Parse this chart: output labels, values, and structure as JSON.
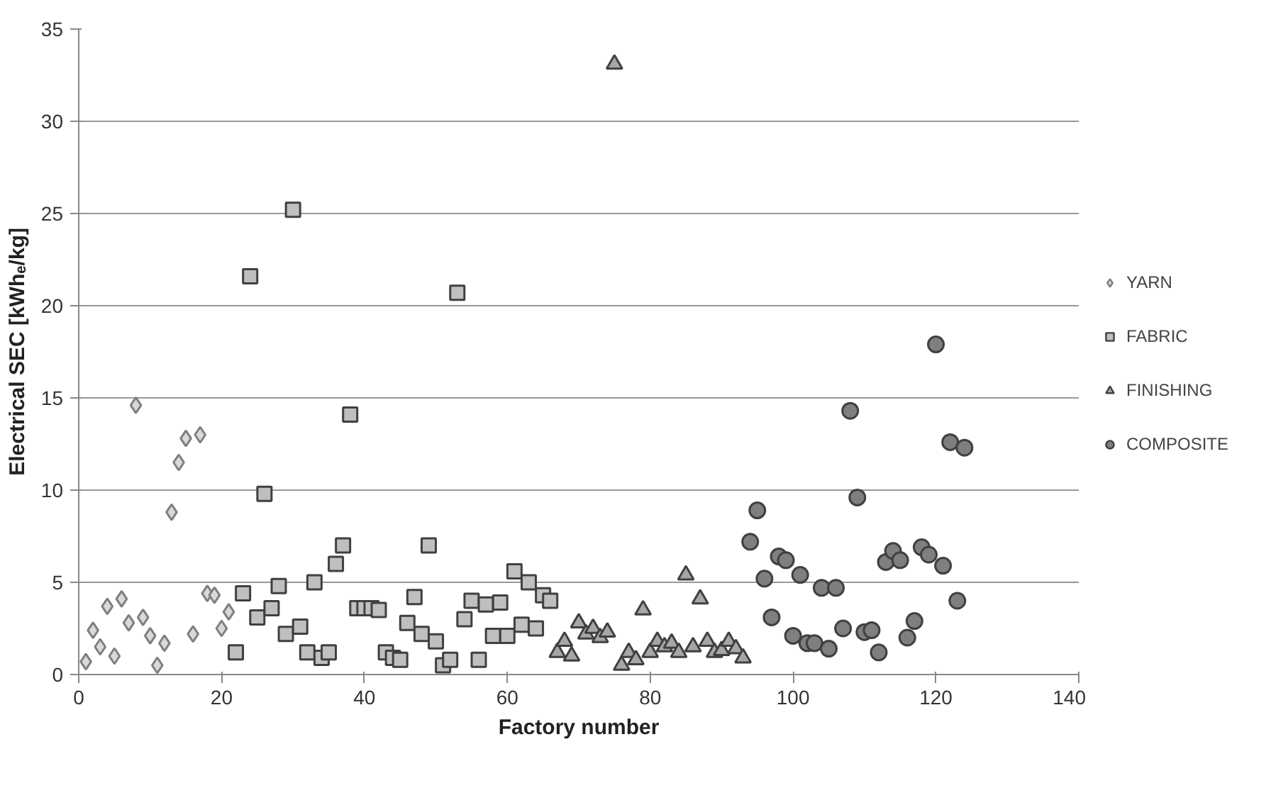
{
  "chart_data": {
    "type": "scatter",
    "xlabel": "Factory number",
    "ylabel": "Electrical SEC [kWhₑ/kg]",
    "xlim": [
      0,
      140
    ],
    "xticks": [
      0,
      20,
      40,
      60,
      80,
      100,
      120,
      140
    ],
    "ylim": [
      0,
      35
    ],
    "yticks": [
      0,
      5,
      10,
      15,
      20,
      25,
      30,
      35
    ],
    "grid": "y",
    "legend": "right",
    "series": [
      {
        "name": "YARN",
        "color": "#d9d9d9",
        "marker": "diamond",
        "x": [
          1,
          2,
          3,
          4,
          5,
          6,
          7,
          8,
          9,
          10,
          11,
          12,
          13,
          14,
          15,
          16,
          17,
          18,
          19,
          20,
          21
        ],
        "values": [
          0.7,
          2.4,
          1.5,
          3.7,
          1.0,
          4.1,
          2.8,
          14.6,
          3.1,
          2.1,
          0.5,
          1.7,
          8.8,
          11.5,
          12.8,
          2.2,
          13.0,
          4.4,
          4.3,
          2.5,
          3.4
        ]
      },
      {
        "name": "FABRIC",
        "color": "#bfbfbf",
        "marker": "square",
        "x": [
          22,
          23,
          24,
          25,
          26,
          27,
          28,
          29,
          30,
          31,
          32,
          33,
          34,
          35,
          36,
          37,
          38,
          39,
          40,
          41,
          42,
          43,
          44,
          45,
          46,
          47,
          48,
          49,
          50,
          51,
          52,
          53,
          54,
          55,
          56,
          57,
          58,
          59,
          60,
          61,
          62,
          63,
          64,
          65,
          66
        ],
        "values": [
          1.2,
          4.4,
          21.6,
          3.1,
          9.8,
          3.6,
          4.8,
          2.2,
          25.2,
          2.6,
          1.2,
          5.0,
          0.9,
          1.2,
          6.0,
          7.0,
          14.1,
          3.6,
          3.6,
          3.6,
          3.5,
          1.2,
          0.9,
          0.8,
          2.8,
          4.2,
          2.2,
          7.0,
          1.8,
          0.5,
          0.8,
          20.7,
          3.0,
          4.0,
          0.8,
          3.8,
          2.1,
          3.9,
          2.1,
          5.6,
          2.7,
          5.0,
          2.5,
          4.3,
          4.0
        ]
      },
      {
        "name": "FINISHING",
        "color": "#a6a6a6",
        "marker": "triangle",
        "x": [
          67,
          68,
          69,
          70,
          71,
          72,
          73,
          74,
          75,
          76,
          77,
          78,
          79,
          80,
          81,
          82,
          83,
          84,
          85,
          86,
          87,
          88,
          89,
          90,
          91,
          92,
          93
        ],
        "values": [
          1.2,
          1.8,
          1.0,
          2.8,
          2.2,
          2.5,
          2.0,
          2.3,
          33.1,
          0.5,
          1.2,
          0.8,
          3.5,
          1.2,
          1.8,
          1.5,
          1.7,
          1.2,
          5.4,
          1.5,
          4.1,
          1.8,
          1.2,
          1.3,
          1.8,
          1.4,
          0.9
        ]
      },
      {
        "name": "COMPOSITE",
        "color": "#7f7f7f",
        "marker": "circle",
        "x": [
          94,
          95,
          96,
          97,
          98,
          99,
          100,
          101,
          102,
          103,
          104,
          105,
          106,
          107,
          108,
          109,
          110,
          111,
          112,
          113,
          114,
          115,
          116,
          117,
          118,
          119,
          120,
          121,
          122,
          123,
          124
        ],
        "values": [
          7.2,
          8.9,
          5.2,
          3.1,
          6.4,
          6.2,
          2.1,
          5.4,
          1.7,
          1.7,
          4.7,
          1.4,
          4.7,
          2.5,
          14.3,
          9.6,
          2.3,
          2.4,
          1.2,
          6.1,
          6.7,
          6.2,
          2.0,
          2.9,
          6.9,
          6.5,
          17.9,
          5.9,
          12.6,
          4.0,
          12.3
        ]
      }
    ]
  }
}
